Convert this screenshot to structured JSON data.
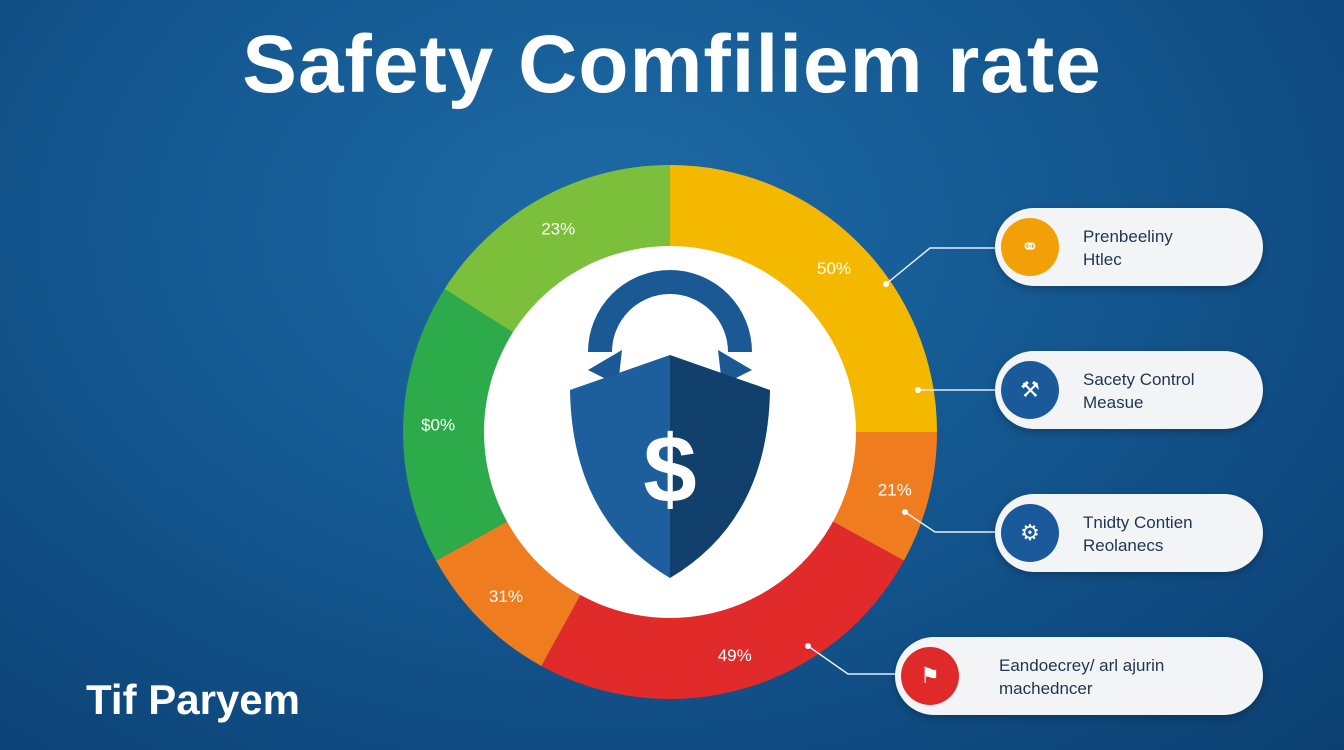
{
  "title": "Safety Comfiliem rate",
  "footer": "Tif Paryem",
  "colors": {
    "background": "#155a93",
    "yellow": "#f5b800",
    "orange": "#ef7d1f",
    "red": "#e12a2a",
    "green_light": "#7cbf3b",
    "green": "#2daa4a",
    "shield_dark": "#12406d",
    "shield_light": "#1d5f9c"
  },
  "center_icon": "shield-dollar-lock-icon",
  "center_symbol": "$",
  "chart_data": {
    "type": "pie",
    "style": "donut",
    "title": "Safety Comfiliem rate",
    "slices": [
      {
        "label": "50%",
        "value": 25,
        "color": "#f5b800"
      },
      {
        "label": "21%",
        "value": 8,
        "color": "#ef7d1f"
      },
      {
        "label": "49%",
        "value": 25,
        "color": "#e12a2a"
      },
      {
        "label": "31%",
        "value": 9,
        "color": "#ef7d1f"
      },
      {
        "label": "$0%",
        "value": 17,
        "color": "#2daa4a"
      },
      {
        "label": "23%",
        "value": 16,
        "color": "#7cbf3b"
      }
    ]
  },
  "legend": [
    {
      "icon": "link-icon",
      "glyph": "⚭",
      "color": "#f2a007",
      "line1": "Prenbeeliny",
      "line2": "Htlec"
    },
    {
      "icon": "tools-icon",
      "glyph": "⚒",
      "color": "#1a5a9a",
      "line1": "Sacety Control",
      "line2": "Measue"
    },
    {
      "icon": "bike-icon",
      "glyph": "⚙",
      "color": "#1a5a9a",
      "line1": "Tnidty Contien",
      "line2": "Reolanecs"
    },
    {
      "icon": "chart-icon",
      "glyph": "⚑",
      "color": "#e02929",
      "line1": "Eandoecrey/ arl ajurin",
      "line2": "machedncer"
    }
  ]
}
